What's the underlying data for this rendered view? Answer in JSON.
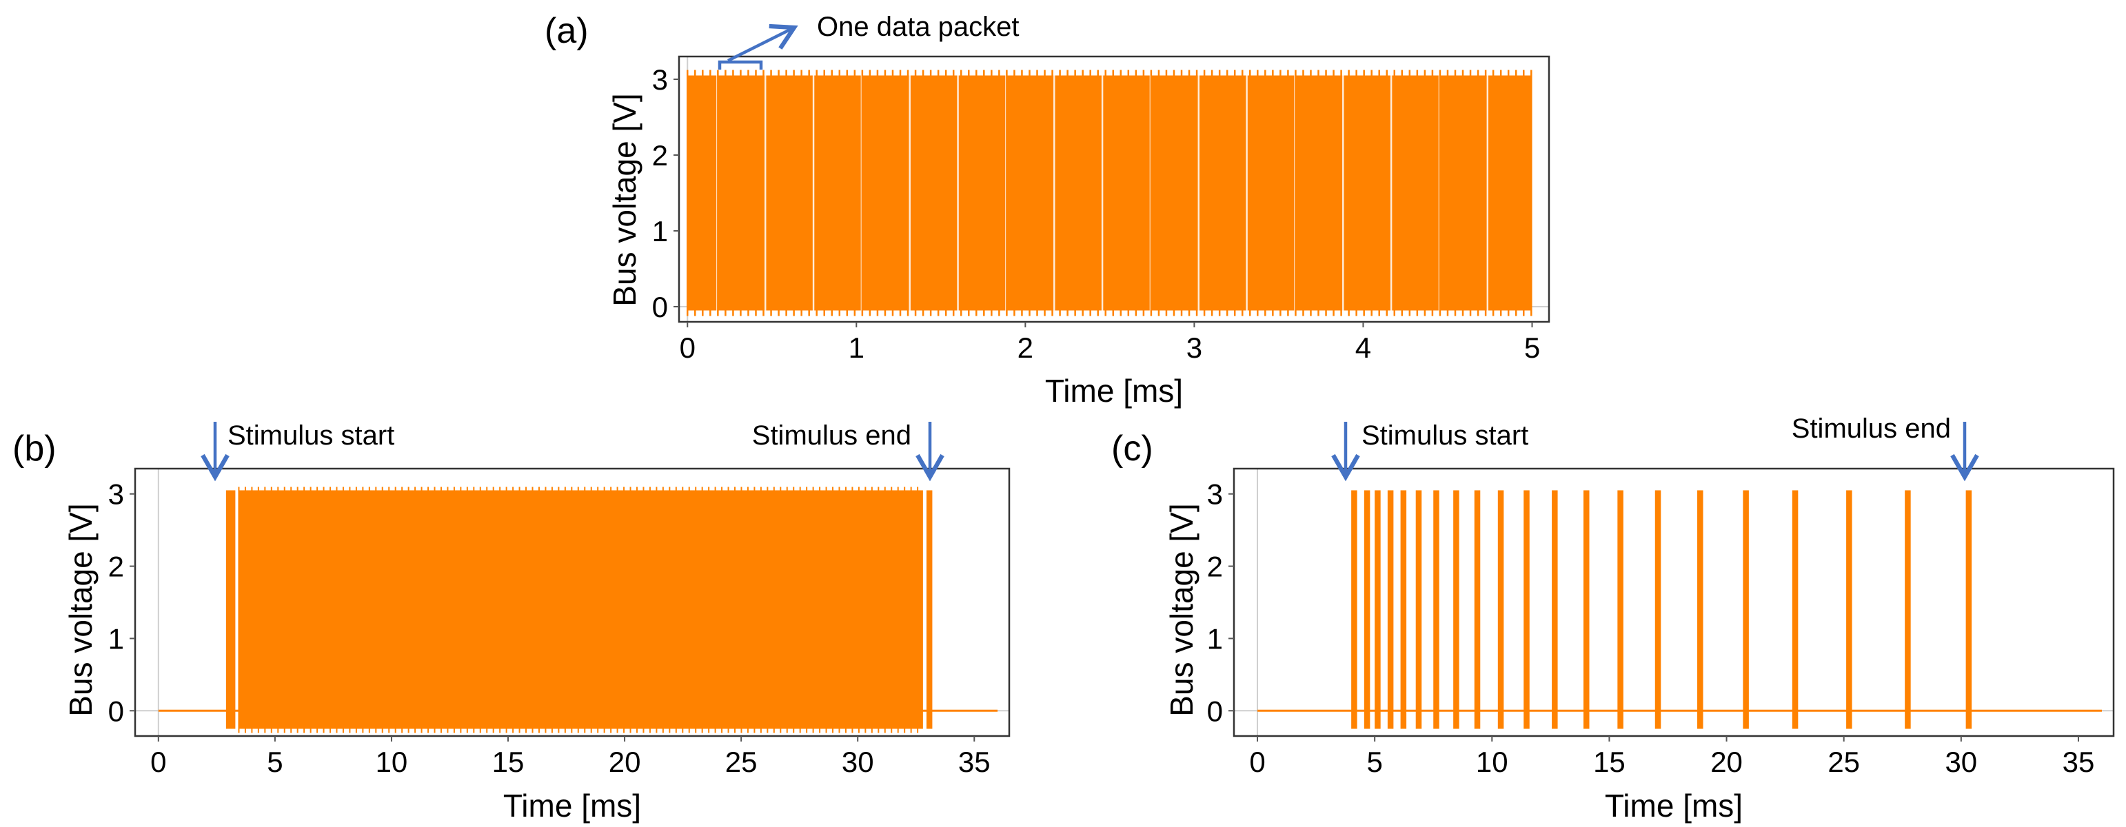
{
  "colors": {
    "signal": "#FF8200",
    "arrow": "#4472C4",
    "axis": "#333333"
  },
  "chart_data": [
    {
      "id": "a",
      "type": "line",
      "panel_label": "(a)",
      "xlabel": "Time [ms]",
      "ylabel": "Bus voltage [V]",
      "xlim": [
        -0.05,
        5.1
      ],
      "ylim": [
        -0.2,
        3.3
      ],
      "xticks": [
        0,
        1,
        2,
        3,
        4,
        5
      ],
      "yticks": [
        0,
        1,
        2,
        3
      ],
      "signal": {
        "low": -0.05,
        "high": 3.05,
        "start": 0.0,
        "end": 5.0,
        "packet_period": 0.285,
        "gap_width": 0.01
      },
      "annotations": [
        {
          "text": "One data packet",
          "bracket_x": [
            0.2,
            0.45
          ]
        }
      ]
    },
    {
      "id": "b",
      "type": "line",
      "panel_label": "(b)",
      "xlabel": "Time [ms]",
      "ylabel": "Bus voltage [V]",
      "xlim": [
        -1,
        36.5
      ],
      "ylim": [
        -0.35,
        3.35
      ],
      "xticks": [
        0,
        5,
        10,
        15,
        20,
        25,
        30,
        35
      ],
      "yticks": [
        0,
        1,
        2,
        3
      ],
      "signal": {
        "baseline": 0.0,
        "low": -0.25,
        "high": 3.05,
        "start": 2.9,
        "end": 33.2,
        "bursts": [
          [
            2.9,
            3.3
          ],
          [
            3.45,
            32.8
          ],
          [
            32.95,
            33.2
          ]
        ]
      },
      "annotations": [
        {
          "text": "Stimulus start",
          "x": 2.9
        },
        {
          "text": "Stimulus end",
          "x": 33.2
        }
      ]
    },
    {
      "id": "c",
      "type": "line",
      "panel_label": "(c)",
      "xlabel": "Time [ms]",
      "ylabel": "Bus voltage [V]",
      "xlim": [
        -1,
        36.5
      ],
      "ylim": [
        -0.35,
        3.35
      ],
      "xticks": [
        0,
        5,
        10,
        15,
        20,
        25,
        30,
        35
      ],
      "yticks": [
        0,
        1,
        2,
        3
      ],
      "signal": {
        "baseline": 0.0,
        "low": -0.25,
        "high": 3.05,
        "burst_width": 0.25,
        "burst_starts": [
          4.0,
          4.55,
          5.0,
          5.55,
          6.1,
          6.75,
          7.5,
          8.35,
          9.25,
          10.25,
          11.35,
          12.55,
          13.9,
          15.35,
          16.95,
          18.75,
          20.7,
          22.8,
          25.1,
          27.6,
          30.2
        ]
      },
      "annotations": [
        {
          "text": "Stimulus start",
          "x": 4.0
        },
        {
          "text": "Stimulus end",
          "x": 30.5
        }
      ]
    }
  ]
}
